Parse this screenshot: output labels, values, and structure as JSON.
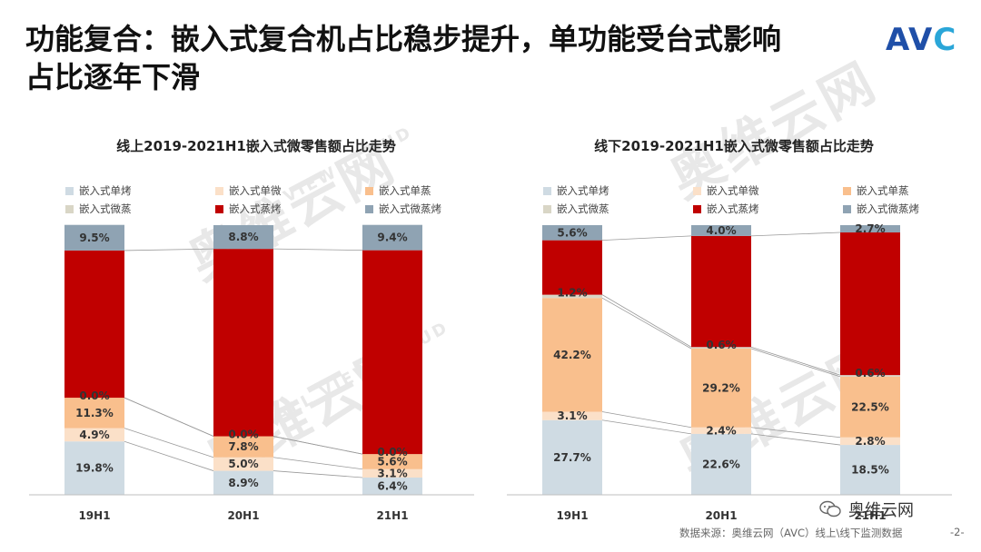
{
  "header": {
    "title_line1": "功能复合：嵌入式复合机占比稳步提升，单功能受台式影响",
    "title_line2": "占比逐年下滑",
    "logo_main": "AV",
    "logo_dot": "C"
  },
  "watermark": {
    "text": "奥维云网",
    "sub_text": "ALL VIEW CLOUD"
  },
  "footer": {
    "source": "数据来源：奥维云网（AVC）线上\\线下监测数据",
    "page": "-2-",
    "wechat_label": "奥维云网"
  },
  "legend": [
    {
      "name": "嵌入式单烤",
      "color": "#cfdbe3"
    },
    {
      "name": "嵌入式单微",
      "color": "#fbe0c8"
    },
    {
      "name": "嵌入式单蒸",
      "color": "#f9bf8d"
    },
    {
      "name": "嵌入式微蒸",
      "color": "#d9d6c6"
    },
    {
      "name": "嵌入式蒸烤",
      "color": "#c00000"
    },
    {
      "name": "嵌入式微蒸烤",
      "color": "#8fa3b3"
    }
  ],
  "chart_data": [
    {
      "type": "bar",
      "stacked": true,
      "percent": true,
      "title": "线上2019-2021H1嵌入式微零售额占比走势",
      "categories": [
        "19H1",
        "20H1",
        "21H1"
      ],
      "series": [
        {
          "name": "嵌入式单烤",
          "color": "#cfdbe3",
          "values": [
            19.8,
            8.9,
            6.4
          ],
          "labels": [
            "19.8%",
            "8.9%",
            "6.4%"
          ]
        },
        {
          "name": "嵌入式单微",
          "color": "#fbe0c8",
          "values": [
            4.9,
            5.0,
            3.1
          ],
          "labels": [
            "4.9%",
            "5.0%",
            "3.1%"
          ]
        },
        {
          "name": "嵌入式单蒸",
          "color": "#f9bf8d",
          "values": [
            11.3,
            7.8,
            5.6
          ],
          "labels": [
            "11.3%",
            "7.8%",
            "5.6%"
          ]
        },
        {
          "name": "嵌入式微蒸",
          "color": "#d9d6c6",
          "values": [
            0.0,
            0.0,
            0.0
          ],
          "labels": [
            "0.0%",
            "0.0%",
            "0.0%"
          ]
        },
        {
          "name": "嵌入式蒸烤",
          "color": "#c00000",
          "values": [
            54.6,
            69.5,
            75.6
          ],
          "labels": [
            "",
            "",
            ""
          ]
        },
        {
          "name": "嵌入式微蒸烤",
          "color": "#8fa3b3",
          "values": [
            9.5,
            8.8,
            9.4
          ],
          "labels": [
            "9.5%",
            "8.8%",
            "9.4%"
          ]
        }
      ],
      "ylim": [
        0,
        100
      ]
    },
    {
      "type": "bar",
      "stacked": true,
      "percent": true,
      "title": "线下2019-2021H1嵌入式微零售额占比走势",
      "categories": [
        "19H1",
        "20H1",
        "21H1"
      ],
      "series": [
        {
          "name": "嵌入式单烤",
          "color": "#cfdbe3",
          "values": [
            27.7,
            22.6,
            18.5
          ],
          "labels": [
            "27.7%",
            "22.6%",
            "18.5%"
          ]
        },
        {
          "name": "嵌入式单微",
          "color": "#fbe0c8",
          "values": [
            3.1,
            2.4,
            2.8
          ],
          "labels": [
            "3.1%",
            "2.4%",
            "2.8%"
          ]
        },
        {
          "name": "嵌入式单蒸",
          "color": "#f9bf8d",
          "values": [
            42.2,
            29.2,
            22.5
          ],
          "labels": [
            "42.2%",
            "29.2%",
            "22.5%"
          ]
        },
        {
          "name": "嵌入式微蒸",
          "color": "#d9d6c6",
          "values": [
            1.2,
            0.6,
            0.6
          ],
          "labels": [
            "1.2%",
            "0.6%",
            "0.6%"
          ]
        },
        {
          "name": "嵌入式蒸烤",
          "color": "#c00000",
          "values": [
            20.2,
            41.2,
            52.9
          ],
          "labels": [
            "",
            "",
            ""
          ]
        },
        {
          "name": "嵌入式微蒸烤",
          "color": "#8fa3b3",
          "values": [
            5.6,
            4.0,
            2.7
          ],
          "labels": [
            "5.6%",
            "4.0%",
            "2.7%"
          ]
        }
      ],
      "ylim": [
        0,
        100
      ]
    }
  ]
}
